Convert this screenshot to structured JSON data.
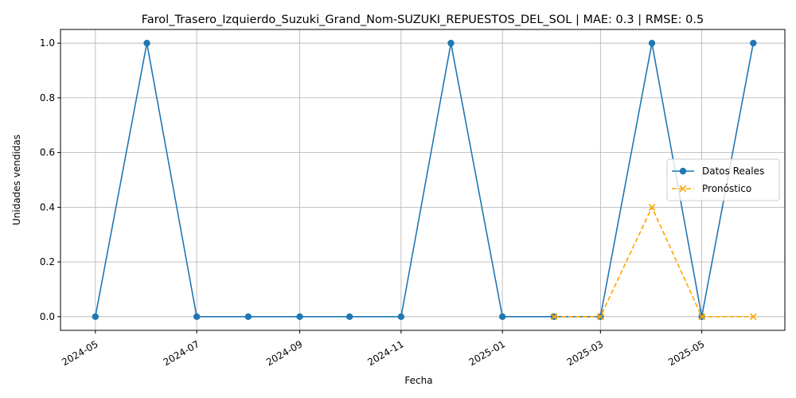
{
  "chart_data": {
    "type": "line",
    "title": "Farol_Trasero_Izquierdo_Suzuki_Grand_Nom-SUZUKI_REPUESTOS_DEL_SOL | MAE: 0.3 | RMSE: 0.5",
    "xlabel": "Fecha",
    "ylabel": "Unidades vendidas",
    "xlim": [
      "2024-04-10",
      "2025-06-20"
    ],
    "ylim": [
      -0.05,
      1.05
    ],
    "x_ticks": [
      "2024-05",
      "2024-07",
      "2024-09",
      "2024-11",
      "2025-01",
      "2025-03",
      "2025-05"
    ],
    "x_tick_dates": [
      "2024-05-01",
      "2024-07-01",
      "2024-09-01",
      "2024-11-01",
      "2025-01-01",
      "2025-03-01",
      "2025-05-01"
    ],
    "y_ticks": [
      "0.0",
      "0.2",
      "0.4",
      "0.6",
      "0.8",
      "1.0"
    ],
    "y_tick_values": [
      0.0,
      0.2,
      0.4,
      0.6,
      0.8,
      1.0
    ],
    "grid": true,
    "legend_position": "center-right",
    "series": [
      {
        "name": "Datos Reales",
        "color": "#1f77b4",
        "marker": "circle",
        "line_style": "solid",
        "x": [
          "2024-05-01",
          "2024-06-01",
          "2024-07-01",
          "2024-08-01",
          "2024-09-01",
          "2024-10-01",
          "2024-11-01",
          "2024-12-01",
          "2025-01-01",
          "2025-02-01",
          "2025-03-01",
          "2025-04-01",
          "2025-05-01",
          "2025-06-01"
        ],
        "y": [
          0,
          1,
          0,
          0,
          0,
          0,
          0,
          1,
          0,
          0,
          0,
          1,
          0,
          1
        ]
      },
      {
        "name": "Pronóstico",
        "color": "#ffa500",
        "marker": "x",
        "line_style": "dashed",
        "x": [
          "2025-02-01",
          "2025-03-01",
          "2025-04-01",
          "2025-05-01",
          "2025-06-01"
        ],
        "y": [
          0,
          0,
          0.4,
          0,
          0
        ]
      }
    ]
  }
}
